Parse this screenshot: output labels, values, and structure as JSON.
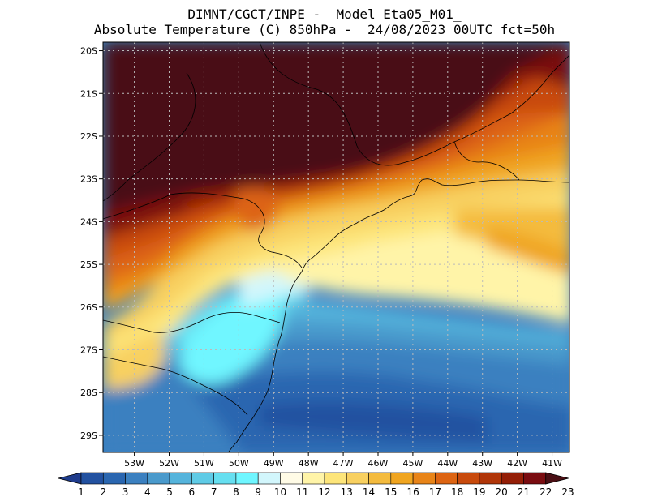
{
  "header": {
    "line1": "DIMNT/CGCT/INPE -  Model Eta05_M01_",
    "line2": "Absolute Temperature (C) 850hPa -  24/08/2023 00UTC fct=50h"
  },
  "map": {
    "lon_range": [
      -53.9,
      -40.5
    ],
    "lat_range": [
      -29.4,
      -19.8
    ],
    "lat_ticks": [
      "20S",
      "21S",
      "22S",
      "23S",
      "24S",
      "25S",
      "26S",
      "27S",
      "28S",
      "29S"
    ],
    "lon_ticks": [
      "53W",
      "52W",
      "51W",
      "50W",
      "49W",
      "48W",
      "47W",
      "46W",
      "45W",
      "44W",
      "43W",
      "42W",
      "41W"
    ],
    "grid": "dotted"
  },
  "colorbar": {
    "labels": [
      "1",
      "2",
      "3",
      "4",
      "5",
      "6",
      "7",
      "8",
      "9",
      "10",
      "11",
      "12",
      "13",
      "14",
      "15",
      "16",
      "17",
      "18",
      "19",
      "20",
      "21",
      "22",
      "23"
    ],
    "colors": [
      "#1f3c8c",
      "#2251a0",
      "#2a66b0",
      "#3b80c0",
      "#4a9acc",
      "#55b4dc",
      "#5fcbe6",
      "#66dff0",
      "#6ff6ff",
      "#d2f6fc",
      "#fffbe6",
      "#fff4a8",
      "#fde57a",
      "#f8d060",
      "#f4bb3e",
      "#f0a520",
      "#e88418",
      "#dd6412",
      "#c84a0c",
      "#b03508",
      "#941e06",
      "#7a0c10",
      "#4a0f14"
    ]
  }
}
